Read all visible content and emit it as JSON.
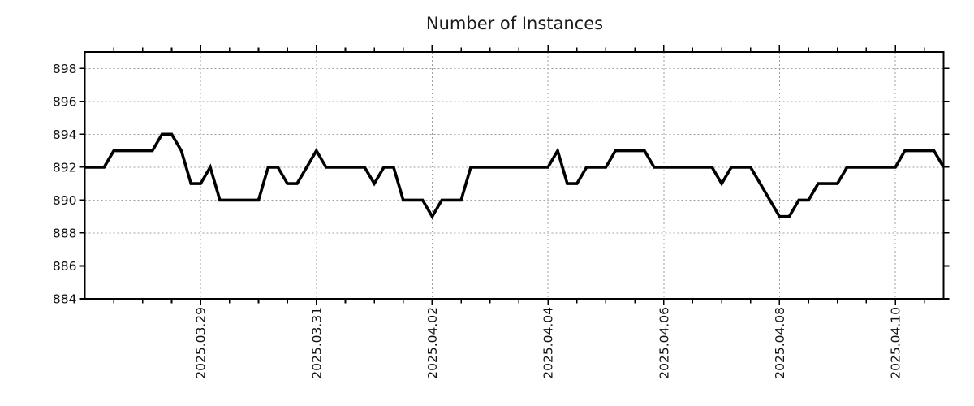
{
  "chart_data": {
    "type": "line",
    "title": "Number of Instances",
    "x_start": "2025-03-27 00:00",
    "x_interval_hours": 4,
    "series": [
      {
        "name": "Number of Instances",
        "values": [
          892,
          892,
          892,
          893,
          893,
          893,
          893,
          893,
          894,
          894,
          893,
          891,
          891,
          892,
          890,
          890,
          890,
          890,
          890,
          892,
          892,
          891,
          891,
          892,
          893,
          892,
          892,
          892,
          892,
          892,
          891,
          892,
          892,
          890,
          890,
          890,
          889,
          890,
          890,
          890,
          892,
          892,
          892,
          892,
          892,
          892,
          892,
          892,
          892,
          893,
          891,
          891,
          892,
          892,
          892,
          893,
          893,
          893,
          893,
          892,
          892,
          892,
          892,
          892,
          892,
          892,
          891,
          892,
          892,
          892,
          891,
          890,
          889,
          889,
          890,
          890,
          891,
          891,
          891,
          892,
          892,
          892,
          892,
          892,
          892,
          893,
          893,
          893,
          893,
          892
        ]
      }
    ],
    "x_tick_labels": [
      {
        "label": "2025.03.29",
        "index": 12
      },
      {
        "label": "2025.03.31",
        "index": 24
      },
      {
        "label": "2025.04.02",
        "index": 36
      },
      {
        "label": "2025.04.04",
        "index": 48
      },
      {
        "label": "2025.04.06",
        "index": 60
      },
      {
        "label": "2025.04.08",
        "index": 72
      },
      {
        "label": "2025.04.10",
        "index": 84
      }
    ],
    "x_minor_tick_every": 3,
    "y_ticks": [
      884,
      886,
      888,
      890,
      892,
      894,
      896,
      898
    ],
    "ylim": [
      884,
      899
    ],
    "grid": true,
    "legend": "none",
    "colors": {
      "line": "#000000",
      "grid": "#9e9e9e",
      "axis": "#000000",
      "text": "#111111",
      "title_text": "#1c1c1c",
      "background": "#ffffff"
    }
  }
}
